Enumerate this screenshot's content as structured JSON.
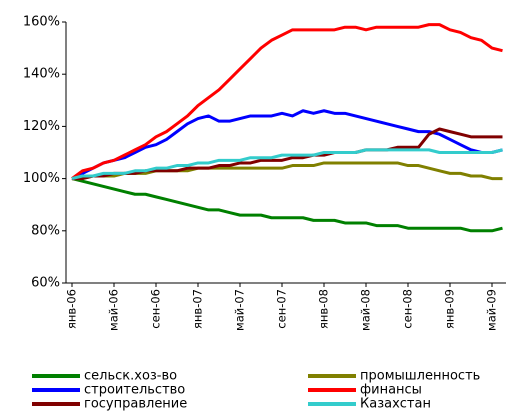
{
  "chart_data": {
    "type": "line",
    "categories": [
      "янв-06",
      null,
      null,
      null,
      "май-06",
      null,
      null,
      null,
      "сен-06",
      null,
      null,
      null,
      "янв-07",
      null,
      null,
      null,
      "май-07",
      null,
      null,
      null,
      "сен-07",
      null,
      null,
      null,
      "янв-08",
      null,
      null,
      null,
      "май-08",
      null,
      null,
      null,
      "сен-08",
      null,
      null,
      null,
      "янв-09",
      null,
      null,
      null,
      "май-09",
      null
    ],
    "series": [
      {
        "name": "сельск.хоз-во",
        "color": "#008000",
        "values": [
          100,
          99,
          98,
          97,
          96,
          95,
          94,
          94,
          93,
          92,
          91,
          90,
          89,
          88,
          88,
          87,
          86,
          86,
          86,
          85,
          85,
          85,
          85,
          84,
          84,
          84,
          83,
          83,
          83,
          82,
          82,
          82,
          81,
          81,
          81,
          81,
          81,
          81,
          80,
          80,
          80,
          81
        ]
      },
      {
        "name": "промышленность",
        "color": "#808000",
        "values": [
          100,
          100,
          101,
          101,
          101,
          102,
          102,
          102,
          103,
          103,
          103,
          103,
          104,
          104,
          104,
          104,
          104,
          104,
          104,
          104,
          104,
          105,
          105,
          105,
          106,
          106,
          106,
          106,
          106,
          106,
          106,
          106,
          105,
          105,
          104,
          103,
          102,
          102,
          101,
          101,
          100,
          100
        ]
      },
      {
        "name": "строительство",
        "color": "#0000ff",
        "values": [
          100,
          102,
          104,
          106,
          107,
          108,
          110,
          112,
          113,
          115,
          118,
          121,
          123,
          124,
          122,
          122,
          123,
          124,
          124,
          124,
          125,
          124,
          126,
          125,
          126,
          125,
          125,
          124,
          123,
          122,
          121,
          120,
          119,
          118,
          118,
          117,
          115,
          113,
          111,
          110,
          110,
          111
        ]
      },
      {
        "name": "финансы",
        "color": "#ff0000",
        "values": [
          100,
          103,
          104,
          106,
          107,
          109,
          111,
          113,
          116,
          118,
          121,
          124,
          128,
          131,
          134,
          138,
          142,
          146,
          150,
          153,
          155,
          157,
          157,
          157,
          157,
          157,
          158,
          158,
          157,
          158,
          158,
          158,
          158,
          158,
          159,
          159,
          157,
          156,
          154,
          153,
          150,
          149
        ]
      },
      {
        "name": "госуправление",
        "color": "#800000",
        "values": [
          100,
          100,
          101,
          101,
          102,
          102,
          102,
          103,
          103,
          103,
          103,
          104,
          104,
          104,
          105,
          105,
          106,
          106,
          107,
          107,
          107,
          108,
          108,
          109,
          109,
          110,
          110,
          110,
          111,
          111,
          111,
          112,
          112,
          112,
          117,
          119,
          118,
          117,
          116,
          116,
          116,
          116
        ]
      },
      {
        "name": "Казахстан",
        "color": "#33cccc",
        "values": [
          100,
          101,
          101,
          102,
          102,
          102,
          103,
          103,
          104,
          104,
          105,
          105,
          106,
          106,
          107,
          107,
          107,
          108,
          108,
          108,
          109,
          109,
          109,
          109,
          110,
          110,
          110,
          110,
          111,
          111,
          111,
          111,
          111,
          111,
          111,
          110,
          110,
          110,
          110,
          110,
          110,
          111
        ]
      }
    ],
    "ylim": [
      60,
      160
    ],
    "yticks": [
      {
        "value": 60,
        "label": "60%"
      },
      {
        "value": 80,
        "label": "80%"
      },
      {
        "value": 100,
        "label": "100%"
      },
      {
        "value": 120,
        "label": "120%"
      },
      {
        "value": 140,
        "label": "140%"
      },
      {
        "value": 160,
        "label": "160%"
      }
    ],
    "grid": false
  }
}
